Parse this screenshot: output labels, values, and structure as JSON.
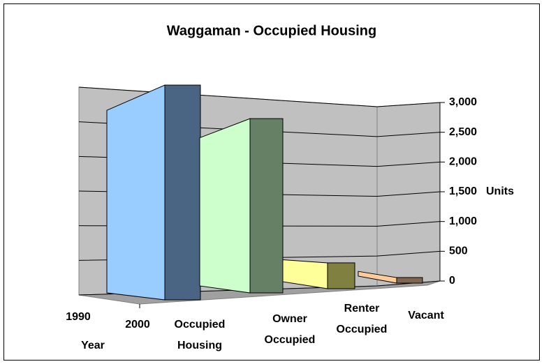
{
  "chart_data": {
    "type": "bar3d",
    "title": "Waggaman - Occupied Housing",
    "categories": [
      "Occupied Housing",
      "Owner Occupied",
      "Renter Occupied",
      "Vacant"
    ],
    "depth_categories": [
      "1990",
      "2000"
    ],
    "depth_label": "Year",
    "y_label": "Units",
    "series": [
      {
        "name": "2000",
        "values": [
          2900,
          2450,
          390,
          90
        ],
        "colors": [
          [
            "#99ccff",
            "#4a6584"
          ],
          [
            "#ccffcc",
            "#668066"
          ],
          [
            "#ffff99",
            "#808040"
          ],
          [
            "#ffcc99",
            "#806650"
          ]
        ]
      }
    ],
    "ylim": [
      0,
      3000
    ],
    "yticks": [
      0,
      500,
      {
        "value": 1000,
        "label": "1,000"
      },
      {
        "value": 1500,
        "label": "1,500"
      },
      {
        "value": 2000,
        "label": "2,000"
      },
      {
        "value": 2500,
        "label": "2,500"
      },
      {
        "value": 3000,
        "label": "3,000"
      }
    ],
    "grid": true
  }
}
